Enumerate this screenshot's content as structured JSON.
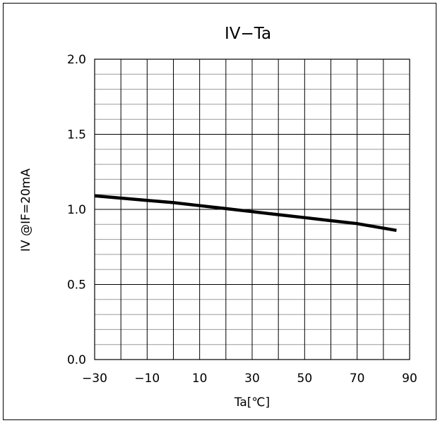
{
  "chart_data": {
    "type": "line",
    "title": "IV−Ta",
    "xlabel": "Ta[℃]",
    "ylabel": "IV  @IF=20mA",
    "xlim": [
      -30,
      90
    ],
    "ylim": [
      0.0,
      2.0
    ],
    "x_ticks": [
      -30,
      -10,
      10,
      30,
      50,
      70,
      90
    ],
    "x_tick_labels": [
      "−30",
      "−10",
      "10",
      "30",
      "50",
      "70",
      "90"
    ],
    "y_ticks": [
      0.0,
      0.5,
      1.0,
      1.5,
      2.0
    ],
    "y_tick_labels": [
      "0.0",
      "0.5",
      "1.0",
      "1.5",
      "2.0"
    ],
    "x_minor_step": 10,
    "y_minor_step": 0.1,
    "grid": true,
    "legend": "none",
    "series": [
      {
        "color": "#000000",
        "x": [
          -30,
          -20,
          -10,
          0,
          10,
          20,
          30,
          40,
          50,
          60,
          70,
          85
        ],
        "y": [
          1.09,
          1.075,
          1.06,
          1.045,
          1.025,
          1.005,
          0.985,
          0.965,
          0.945,
          0.925,
          0.905,
          0.86
        ]
      }
    ]
  }
}
